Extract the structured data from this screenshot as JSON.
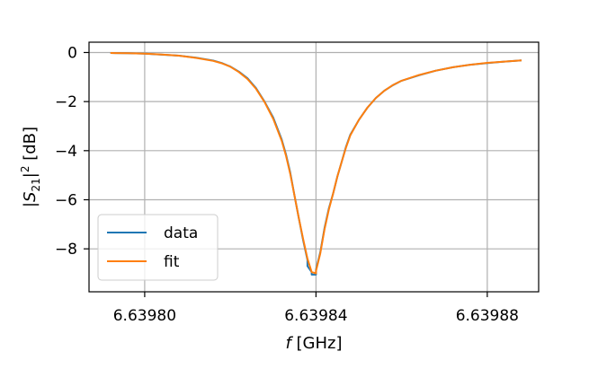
{
  "chart_data": {
    "type": "line",
    "xlabel_prefix": "f",
    "xlabel_rest": " [GHz]",
    "ylabel_parts": [
      "|S",
      "21",
      "|",
      "2",
      " [dB]"
    ],
    "xlim": [
      6.639787,
      6.639892
    ],
    "ylim": [
      -9.75,
      0.42
    ],
    "x_ticks": [
      6.6398,
      6.63984,
      6.63988
    ],
    "x_tick_labels": [
      "6.63980",
      "6.63984",
      "6.63988"
    ],
    "y_ticks": [
      0,
      -2,
      -4,
      -6,
      -8
    ],
    "y_tick_labels": [
      "0",
      "−2",
      "−4",
      "−6",
      "−8"
    ],
    "grid": true,
    "legend": {
      "placement": "lower-left",
      "entries": [
        "data",
        "fit"
      ]
    },
    "series": [
      {
        "name": "data",
        "color": "#1f77b4",
        "points": [
          [
            6.639792,
            -0.02
          ],
          [
            6.639796,
            -0.03
          ],
          [
            6.6398,
            -0.05
          ],
          [
            6.639804,
            -0.09
          ],
          [
            6.639808,
            -0.13
          ],
          [
            6.639812,
            -0.21
          ],
          [
            6.639816,
            -0.33
          ],
          [
            6.639818,
            -0.43
          ],
          [
            6.63982,
            -0.57
          ],
          [
            6.639822,
            -0.78
          ],
          [
            6.639824,
            -1.05
          ],
          [
            6.639826,
            -1.45
          ],
          [
            6.639828,
            -2.0
          ],
          [
            6.63983,
            -2.65
          ],
          [
            6.639832,
            -3.55
          ],
          [
            6.639833,
            -4.15
          ],
          [
            6.639834,
            -4.9
          ],
          [
            6.639835,
            -5.85
          ],
          [
            6.639836,
            -6.75
          ],
          [
            6.639837,
            -7.65
          ],
          [
            6.639838,
            -8.45
          ],
          [
            6.639838,
            -8.7
          ],
          [
            6.639839,
            -8.95
          ],
          [
            6.639839,
            -9.05
          ],
          [
            6.63984,
            -9.05
          ],
          [
            6.63984,
            -8.85
          ],
          [
            6.639841,
            -8.15
          ],
          [
            6.639842,
            -7.15
          ],
          [
            6.639843,
            -6.35
          ],
          [
            6.639844,
            -5.75
          ],
          [
            6.639845,
            -5.05
          ],
          [
            6.639846,
            -4.45
          ],
          [
            6.639847,
            -3.85
          ],
          [
            6.639848,
            -3.35
          ],
          [
            6.63985,
            -2.75
          ],
          [
            6.639852,
            -2.25
          ],
          [
            6.639854,
            -1.85
          ],
          [
            6.639856,
            -1.55
          ],
          [
            6.639858,
            -1.33
          ],
          [
            6.63986,
            -1.15
          ],
          [
            6.639864,
            -0.93
          ],
          [
            6.639868,
            -0.74
          ],
          [
            6.639872,
            -0.6
          ],
          [
            6.639876,
            -0.5
          ],
          [
            6.63988,
            -0.43
          ],
          [
            6.639884,
            -0.37
          ],
          [
            6.639888,
            -0.32
          ]
        ]
      },
      {
        "name": "fit",
        "color": "#ff7f0e",
        "points": [
          [
            6.639792,
            -0.02
          ],
          [
            6.639796,
            -0.03
          ],
          [
            6.6398,
            -0.05
          ],
          [
            6.639804,
            -0.08
          ],
          [
            6.639808,
            -0.13
          ],
          [
            6.639812,
            -0.22
          ],
          [
            6.639816,
            -0.34
          ],
          [
            6.639818,
            -0.44
          ],
          [
            6.63982,
            -0.58
          ],
          [
            6.639822,
            -0.8
          ],
          [
            6.639824,
            -1.08
          ],
          [
            6.639826,
            -1.48
          ],
          [
            6.639828,
            -2.02
          ],
          [
            6.63983,
            -2.7
          ],
          [
            6.639832,
            -3.6
          ],
          [
            6.639833,
            -4.2
          ],
          [
            6.639834,
            -4.95
          ],
          [
            6.639835,
            -5.85
          ],
          [
            6.639836,
            -6.75
          ],
          [
            6.639837,
            -7.6
          ],
          [
            6.639838,
            -8.4
          ],
          [
            6.639839,
            -8.95
          ],
          [
            6.63984,
            -9.0
          ],
          [
            6.63984,
            -8.9
          ],
          [
            6.639841,
            -8.2
          ],
          [
            6.639842,
            -7.2
          ],
          [
            6.639843,
            -6.4
          ],
          [
            6.639844,
            -5.75
          ],
          [
            6.639845,
            -5.05
          ],
          [
            6.639846,
            -4.45
          ],
          [
            6.639847,
            -3.88
          ],
          [
            6.639848,
            -3.38
          ],
          [
            6.63985,
            -2.75
          ],
          [
            6.639852,
            -2.25
          ],
          [
            6.639854,
            -1.85
          ],
          [
            6.639856,
            -1.55
          ],
          [
            6.639858,
            -1.32
          ],
          [
            6.63986,
            -1.15
          ],
          [
            6.639864,
            -0.92
          ],
          [
            6.639868,
            -0.74
          ],
          [
            6.639872,
            -0.6
          ],
          [
            6.639876,
            -0.5
          ],
          [
            6.63988,
            -0.42
          ],
          [
            6.639884,
            -0.37
          ],
          [
            6.639888,
            -0.32
          ]
        ]
      }
    ]
  }
}
